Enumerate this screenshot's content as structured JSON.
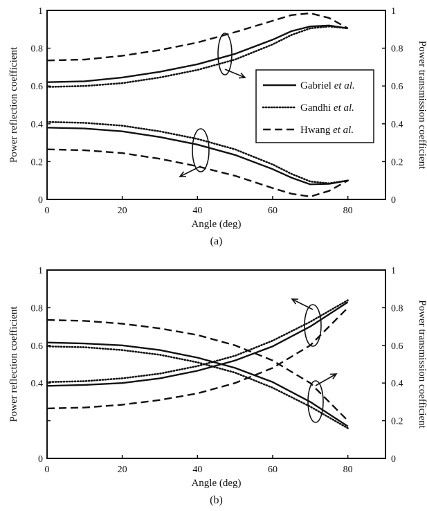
{
  "chart_data": [
    {
      "type": "line",
      "panel_label": "(a)",
      "xlabel": "Angle (deg)",
      "ylabel": "Power reflection coefficient",
      "y2label": "Power transmission coefficient",
      "xlim": [
        0,
        90
      ],
      "ylim": [
        0,
        1
      ],
      "xticks": [
        0,
        20,
        40,
        60,
        80
      ],
      "yticks": [
        0,
        0.2,
        0.4,
        0.6,
        0.8,
        1
      ],
      "ytick_labels": [
        "0",
        "0.2",
        "0.4",
        "0.6",
        "0.8",
        "1"
      ],
      "legend_position": "right",
      "legend": [
        {
          "name": "Gabriel",
          "suffix": "et al.",
          "style": "solid"
        },
        {
          "name": "Gandhi",
          "suffix": "et al.",
          "style": "dotted"
        },
        {
          "name": "Hwang",
          "suffix": "et al.",
          "style": "dashed"
        }
      ],
      "series": [
        {
          "legend_index": 0,
          "quantity": "reflection",
          "style": "solid",
          "points": [
            [
              0,
              0.38
            ],
            [
              10,
              0.375
            ],
            [
              20,
              0.36
            ],
            [
              30,
              0.33
            ],
            [
              40,
              0.29
            ],
            [
              50,
              0.235
            ],
            [
              60,
              0.16
            ],
            [
              65,
              0.115
            ],
            [
              70,
              0.08
            ],
            [
              75,
              0.082
            ],
            [
              80,
              0.1
            ]
          ]
        },
        {
          "legend_index": 1,
          "quantity": "reflection",
          "style": "dotted",
          "points": [
            [
              0,
              0.41
            ],
            [
              10,
              0.405
            ],
            [
              20,
              0.39
            ],
            [
              30,
              0.36
            ],
            [
              40,
              0.32
            ],
            [
              50,
              0.265
            ],
            [
              60,
              0.185
            ],
            [
              65,
              0.135
            ],
            [
              70,
              0.095
            ],
            [
              75,
              0.085
            ],
            [
              80,
              0.1
            ]
          ]
        },
        {
          "legend_index": 2,
          "quantity": "reflection",
          "style": "dashed",
          "points": [
            [
              0,
              0.265
            ],
            [
              10,
              0.26
            ],
            [
              20,
              0.245
            ],
            [
              30,
              0.215
            ],
            [
              40,
              0.175
            ],
            [
              50,
              0.125
            ],
            [
              60,
              0.06
            ],
            [
              65,
              0.03
            ],
            [
              70,
              0.015
            ],
            [
              75,
              0.045
            ],
            [
              80,
              0.1
            ]
          ]
        },
        {
          "legend_index": 0,
          "quantity": "transmission",
          "style": "solid",
          "points": [
            [
              0,
              0.62
            ],
            [
              10,
              0.625
            ],
            [
              20,
              0.645
            ],
            [
              30,
              0.675
            ],
            [
              40,
              0.715
            ],
            [
              50,
              0.77
            ],
            [
              60,
              0.845
            ],
            [
              65,
              0.89
            ],
            [
              70,
              0.915
            ],
            [
              75,
              0.92
            ],
            [
              80,
              0.905
            ]
          ]
        },
        {
          "legend_index": 1,
          "quantity": "transmission",
          "style": "dotted",
          "points": [
            [
              0,
              0.595
            ],
            [
              10,
              0.6
            ],
            [
              20,
              0.615
            ],
            [
              30,
              0.645
            ],
            [
              40,
              0.685
            ],
            [
              50,
              0.74
            ],
            [
              60,
              0.82
            ],
            [
              65,
              0.87
            ],
            [
              70,
              0.905
            ],
            [
              75,
              0.915
            ],
            [
              80,
              0.905
            ]
          ]
        },
        {
          "legend_index": 2,
          "quantity": "transmission",
          "style": "dashed",
          "points": [
            [
              0,
              0.735
            ],
            [
              10,
              0.74
            ],
            [
              20,
              0.76
            ],
            [
              30,
              0.79
            ],
            [
              40,
              0.83
            ],
            [
              50,
              0.885
            ],
            [
              60,
              0.945
            ],
            [
              65,
              0.975
            ],
            [
              70,
              0.985
            ],
            [
              75,
              0.96
            ],
            [
              80,
              0.905
            ]
          ]
        }
      ]
    },
    {
      "type": "line",
      "panel_label": "(b)",
      "xlabel": "Angle (deg)",
      "ylabel": "Power reflection coefficient",
      "y2label": "Power transmission coefficient",
      "xlim": [
        0,
        90
      ],
      "ylim": [
        0,
        1
      ],
      "xticks": [
        0,
        20,
        40,
        60,
        80
      ],
      "yticks": [
        0,
        0.2,
        0.4,
        0.6,
        0.8,
        1
      ],
      "ytick_labels": [
        "0",
        "",
        "0.4",
        "0.6",
        "0.8",
        "1"
      ],
      "y2tick_labels": [
        "0",
        "0.2",
        "0.4",
        "0.6",
        "0.8",
        "1"
      ],
      "series": [
        {
          "legend_index": 0,
          "quantity": "reflection",
          "style": "solid",
          "points": [
            [
              0,
              0.385
            ],
            [
              10,
              0.39
            ],
            [
              20,
              0.4
            ],
            [
              30,
              0.425
            ],
            [
              40,
              0.465
            ],
            [
              50,
              0.52
            ],
            [
              60,
              0.595
            ],
            [
              70,
              0.7
            ],
            [
              80,
              0.83
            ]
          ]
        },
        {
          "legend_index": 1,
          "quantity": "reflection",
          "style": "dotted",
          "points": [
            [
              0,
              0.405
            ],
            [
              10,
              0.41
            ],
            [
              20,
              0.425
            ],
            [
              30,
              0.45
            ],
            [
              40,
              0.49
            ],
            [
              50,
              0.545
            ],
            [
              60,
              0.625
            ],
            [
              70,
              0.725
            ],
            [
              80,
              0.84
            ]
          ]
        },
        {
          "legend_index": 2,
          "quantity": "reflection",
          "style": "dashed",
          "points": [
            [
              0,
              0.265
            ],
            [
              10,
              0.27
            ],
            [
              20,
              0.285
            ],
            [
              30,
              0.31
            ],
            [
              40,
              0.345
            ],
            [
              50,
              0.4
            ],
            [
              60,
              0.48
            ],
            [
              70,
              0.6
            ],
            [
              80,
              0.8
            ]
          ]
        },
        {
          "legend_index": 0,
          "quantity": "transmission",
          "style": "solid",
          "points": [
            [
              0,
              0.615
            ],
            [
              10,
              0.61
            ],
            [
              20,
              0.6
            ],
            [
              30,
              0.575
            ],
            [
              40,
              0.535
            ],
            [
              50,
              0.48
            ],
            [
              60,
              0.405
            ],
            [
              70,
              0.3
            ],
            [
              80,
              0.17
            ]
          ]
        },
        {
          "legend_index": 1,
          "quantity": "transmission",
          "style": "dotted",
          "points": [
            [
              0,
              0.595
            ],
            [
              10,
              0.59
            ],
            [
              20,
              0.575
            ],
            [
              30,
              0.55
            ],
            [
              40,
              0.51
            ],
            [
              50,
              0.455
            ],
            [
              60,
              0.375
            ],
            [
              70,
              0.275
            ],
            [
              80,
              0.16
            ]
          ]
        },
        {
          "legend_index": 2,
          "quantity": "transmission",
          "style": "dashed",
          "points": [
            [
              0,
              0.735
            ],
            [
              10,
              0.73
            ],
            [
              20,
              0.715
            ],
            [
              30,
              0.69
            ],
            [
              40,
              0.655
            ],
            [
              50,
              0.6
            ],
            [
              60,
              0.52
            ],
            [
              70,
              0.4
            ],
            [
              80,
              0.2
            ]
          ]
        }
      ]
    }
  ]
}
